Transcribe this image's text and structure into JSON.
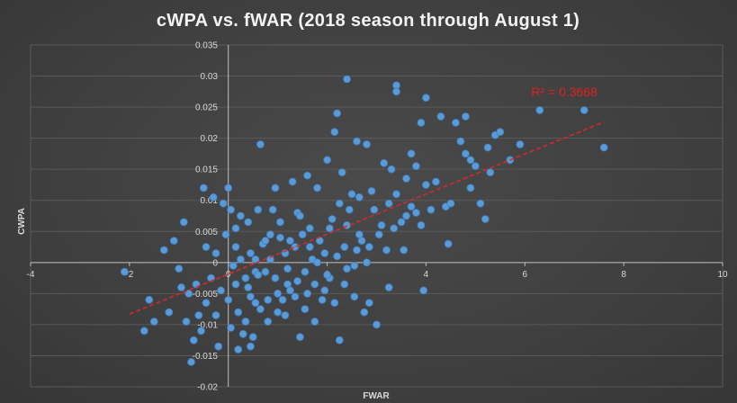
{
  "chart_data": {
    "type": "scatter",
    "title": "cWPA vs. fWAR (2018 season through August 1)",
    "xlabel": "FWAR",
    "ylabel": "CWPA",
    "xlim": [
      -4,
      10
    ],
    "ylim": [
      -0.02,
      0.035
    ],
    "xticks": [
      -4,
      -2,
      0,
      2,
      4,
      6,
      8,
      10
    ],
    "xtick_labels": [
      "-4",
      "-2",
      "0",
      "2",
      "4",
      "6",
      "8",
      "10"
    ],
    "yticks": [
      -0.02,
      -0.015,
      -0.01,
      -0.005,
      0,
      0.005,
      0.01,
      0.015,
      0.02,
      0.025,
      0.03,
      0.035
    ],
    "ytick_labels": [
      "-0.02",
      "-0.015",
      "-0.01",
      "-0.005",
      "0",
      "0.005",
      "0.01",
      "0.015",
      "0.02",
      "0.025",
      "0.03",
      "0.035"
    ],
    "grid": "horizontal",
    "legend": "none",
    "marker_color": "#5b9bd5",
    "trendline": {
      "type": "linear",
      "x": [
        -2,
        7.6
      ],
      "y": [
        -0.0083,
        0.0226
      ],
      "color": "#d42a2a",
      "style": "dashed",
      "annotation": "R² = 0.3668"
    },
    "series": [
      {
        "values": [
          [
            -2.1,
            -0.0015
          ],
          [
            -1.7,
            -0.011
          ],
          [
            -1.6,
            -0.006
          ],
          [
            -1.5,
            -0.0095
          ],
          [
            -1.3,
            0.002
          ],
          [
            -1.2,
            -0.008
          ],
          [
            -1.1,
            0.0035
          ],
          [
            -1.0,
            -0.001
          ],
          [
            -0.95,
            -0.004
          ],
          [
            -0.9,
            0.0065
          ],
          [
            -0.85,
            -0.0095
          ],
          [
            -0.8,
            -0.005
          ],
          [
            -0.75,
            -0.016
          ],
          [
            -0.7,
            -0.0125
          ],
          [
            -0.6,
            -0.0085
          ],
          [
            -0.55,
            -0.011
          ],
          [
            -0.5,
            0.012
          ],
          [
            -0.45,
            0.0025
          ],
          [
            -0.3,
            0.0105
          ],
          [
            -0.2,
            -0.0135
          ],
          [
            -0.1,
            0.0095
          ],
          [
            0.0,
            0.012
          ],
          [
            0.1,
            -0.0005
          ],
          [
            0.2,
            -0.014
          ],
          [
            0.3,
            -0.0115
          ],
          [
            0.4,
            0.0065
          ],
          [
            0.45,
            -0.0135
          ],
          [
            0.5,
            -0.012
          ],
          [
            0.55,
            -0.0065
          ],
          [
            0.6,
            0.0085
          ],
          [
            0.65,
            0.019
          ],
          [
            0.7,
            0.003
          ],
          [
            0.8,
            -0.0095
          ],
          [
            0.9,
            0.0085
          ],
          [
            0.95,
            0.012
          ],
          [
            1.0,
            -0.005
          ],
          [
            1.05,
            0.004
          ],
          [
            1.1,
            -0.006
          ],
          [
            1.2,
            -0.0035
          ],
          [
            1.3,
            0.013
          ],
          [
            1.4,
            0.008
          ],
          [
            1.45,
            -0.012
          ],
          [
            1.5,
            0.0045
          ],
          [
            1.6,
            0.014
          ],
          [
            1.7,
            0.0005
          ],
          [
            1.8,
            0.012
          ],
          [
            1.9,
            -0.006
          ],
          [
            2.0,
            0.0165
          ],
          [
            2.1,
            0.007
          ],
          [
            2.15,
            0.021
          ],
          [
            2.2,
            0.024
          ],
          [
            2.25,
            -0.0125
          ],
          [
            2.3,
            0.0145
          ],
          [
            2.4,
            0.006
          ],
          [
            2.5,
            0.011
          ],
          [
            2.6,
            0.0195
          ],
          [
            2.7,
            0.0035
          ],
          [
            2.75,
            -0.008
          ],
          [
            2.8,
            0.019
          ],
          [
            2.9,
            0.0115
          ],
          [
            3.0,
            -0.01
          ],
          [
            3.1,
            0.006
          ],
          [
            3.15,
            0.016
          ],
          [
            3.2,
            0.002
          ],
          [
            3.25,
            -0.004
          ],
          [
            3.3,
            0.015
          ],
          [
            3.4,
            0.011
          ],
          [
            3.5,
            0.0065
          ],
          [
            3.55,
            0.002
          ],
          [
            3.6,
            0.0135
          ],
          [
            3.7,
            0.009
          ],
          [
            3.8,
            0.0155
          ],
          [
            3.9,
            0.006
          ],
          [
            3.95,
            -0.0045
          ],
          [
            4.0,
            0.0125
          ],
          [
            4.1,
            0.0085
          ],
          [
            4.2,
            0.013
          ],
          [
            4.3,
            0.0235
          ],
          [
            4.4,
            0.009
          ],
          [
            4.45,
            0.003
          ],
          [
            4.5,
            0.0095
          ],
          [
            4.6,
            0.0225
          ],
          [
            4.7,
            0.0195
          ],
          [
            4.8,
            0.0175
          ],
          [
            4.9,
            0.012
          ],
          [
            5.0,
            0.0155
          ],
          [
            5.1,
            0.0095
          ],
          [
            5.2,
            0.007
          ],
          [
            5.25,
            0.0185
          ],
          [
            5.3,
            0.0145
          ],
          [
            5.4,
            0.0205
          ],
          [
            5.5,
            0.021
          ],
          [
            5.7,
            0.0165
          ],
          [
            5.9,
            0.019
          ],
          [
            6.3,
            0.0245
          ],
          [
            7.2,
            0.0245
          ],
          [
            7.6,
            0.0185
          ],
          [
            3.4,
            0.0285
          ],
          [
            3.4,
            0.0275
          ],
          [
            4.0,
            0.0265
          ],
          [
            4.8,
            0.0235
          ],
          [
            2.4,
            0.0295
          ],
          [
            3.9,
            0.0225
          ],
          [
            3.7,
            0.0175
          ],
          [
            4.9,
            0.0165
          ],
          [
            3.8,
            0.008
          ],
          [
            3.6,
            0.0075
          ],
          [
            0.05,
            0.0085
          ],
          [
            0.25,
            0.0075
          ],
          [
            0.15,
            0.0055
          ],
          [
            -0.05,
            0.0045
          ],
          [
            -0.25,
            0.0015
          ],
          [
            0.35,
            -0.0025
          ],
          [
            0.55,
            0.0005
          ],
          [
            0.75,
            -0.0015
          ],
          [
            0.85,
            0.0045
          ],
          [
            1.15,
            0.0015
          ],
          [
            1.25,
            -0.0045
          ],
          [
            1.35,
            0.0025
          ],
          [
            1.55,
            -0.0015
          ],
          [
            1.65,
            0.0055
          ],
          [
            1.75,
            -0.0035
          ],
          [
            1.85,
            0.0035
          ],
          [
            1.95,
            0.0015
          ],
          [
            2.05,
            -0.0025
          ],
          [
            2.35,
            0.0025
          ],
          [
            2.45,
            0.0085
          ],
          [
            2.55,
            -0.0005
          ],
          [
            2.65,
            0.0045
          ],
          [
            2.85,
            0.0025
          ],
          [
            3.05,
            0.0045
          ],
          [
            3.35,
            0.0055
          ],
          [
            -0.35,
            -0.0025
          ],
          [
            -0.15,
            -0.0045
          ],
          [
            0.15,
            -0.0035
          ],
          [
            0.45,
            -0.0055
          ],
          [
            0.65,
            -0.0075
          ],
          [
            0.95,
            -0.0025
          ],
          [
            1.15,
            -0.0085
          ],
          [
            1.35,
            -0.0055
          ],
          [
            1.55,
            -0.0075
          ],
          [
            1.75,
            -0.0095
          ],
          [
            1.95,
            -0.0045
          ],
          [
            2.15,
            -0.0065
          ],
          [
            2.35,
            -0.0035
          ],
          [
            2.55,
            -0.0055
          ],
          [
            2.85,
            -0.0065
          ],
          [
            -0.65,
            -0.0035
          ],
          [
            -0.45,
            -0.0065
          ],
          [
            -0.25,
            -0.0085
          ],
          [
            0.05,
            -0.0105
          ],
          [
            0.35,
            -0.0095
          ],
          [
            0.15,
            0.0025
          ],
          [
            0.45,
            0.0015
          ],
          [
            0.75,
            0.0035
          ],
          [
            1.05,
            0.0065
          ],
          [
            1.45,
            0.0075
          ],
          [
            0.25,
            0.0005
          ],
          [
            0.55,
            -0.0015
          ],
          [
            0.85,
            0.0005
          ],
          [
            1.25,
            0.0035
          ],
          [
            1.65,
            0.0025
          ],
          [
            2.05,
            0.0055
          ],
          [
            2.25,
            0.0095
          ],
          [
            2.65,
            0.0105
          ],
          [
            2.95,
            0.0085
          ],
          [
            3.25,
            0.0095
          ],
          [
            0.0,
            -0.006
          ],
          [
            0.2,
            -0.008
          ],
          [
            0.4,
            -0.004
          ],
          [
            0.6,
            -0.002
          ],
          [
            0.8,
            -0.006
          ],
          [
            1.0,
            -0.008
          ],
          [
            1.2,
            -0.001
          ],
          [
            1.4,
            -0.003
          ],
          [
            1.6,
            -0.005
          ],
          [
            1.8,
            0.0
          ],
          [
            2.0,
            -0.002
          ],
          [
            2.2,
            0.001
          ],
          [
            2.4,
            -0.001
          ],
          [
            2.6,
            0.002
          ],
          [
            2.8,
            0.0
          ]
        ]
      }
    ]
  }
}
